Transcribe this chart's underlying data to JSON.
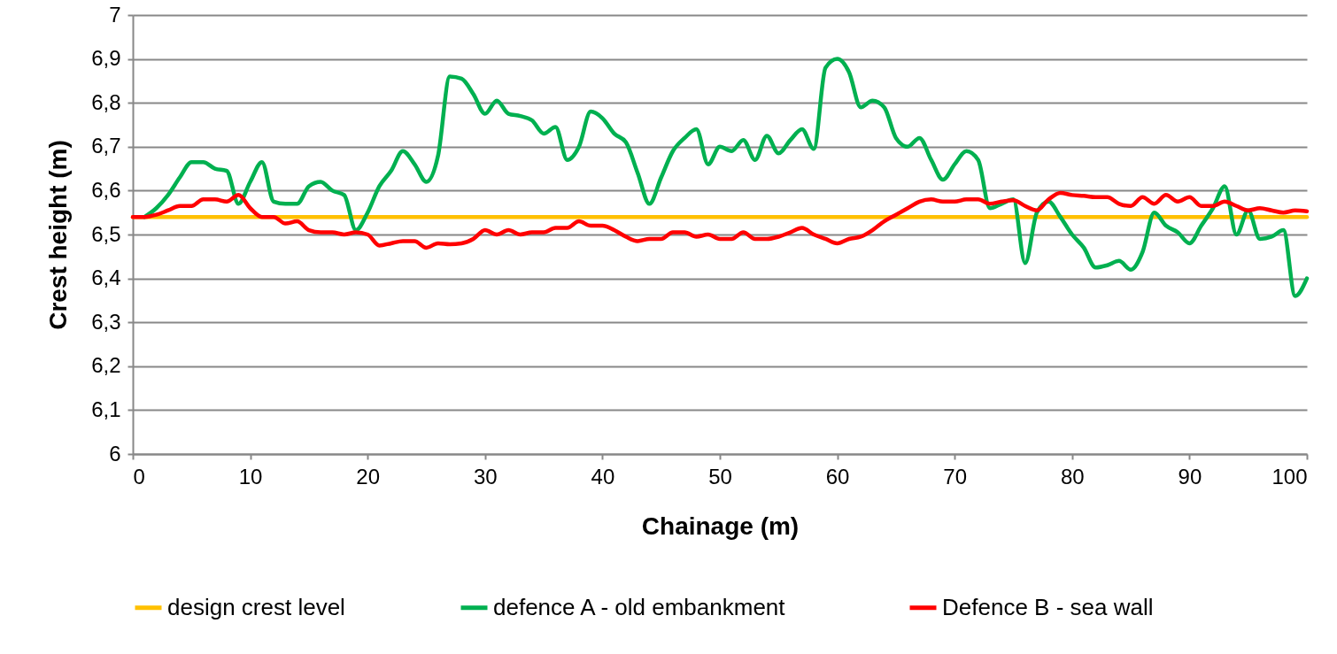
{
  "chart_data": {
    "type": "line",
    "xlabel": "Chainage (m)",
    "ylabel": "Crest height (m)",
    "xlim": [
      0,
      100
    ],
    "xticks": [
      0,
      10,
      20,
      30,
      40,
      50,
      60,
      70,
      80,
      90,
      100
    ],
    "ylim": [
      6,
      7
    ],
    "yticks": [
      6,
      {
        "value": 6.1,
        "label": "6,1"
      },
      {
        "value": 6.2,
        "label": "6,2"
      },
      {
        "value": 6.3,
        "label": "6,3"
      },
      {
        "value": 6.4,
        "label": "6,4"
      },
      {
        "value": 6.5,
        "label": "6,5"
      },
      {
        "value": 6.6,
        "label": "6,6"
      },
      {
        "value": 6.7,
        "label": "6,7"
      },
      {
        "value": 6.8,
        "label": "6,8"
      },
      {
        "value": 6.9,
        "label": "6,9"
      },
      7
    ],
    "grid": "y",
    "legend": "bottom",
    "marker": "none",
    "line_style": "solid",
    "x": [
      0,
      1,
      2,
      3,
      4,
      5,
      6,
      7,
      8,
      9,
      10,
      11,
      12,
      13,
      14,
      15,
      16,
      17,
      18,
      19,
      20,
      21,
      22,
      23,
      24,
      25,
      26,
      27,
      28,
      29,
      30,
      31,
      32,
      33,
      34,
      35,
      36,
      37,
      38,
      39,
      40,
      41,
      42,
      43,
      44,
      45,
      46,
      47,
      48,
      49,
      50,
      51,
      52,
      53,
      54,
      55,
      56,
      57,
      58,
      59,
      60,
      61,
      62,
      63,
      64,
      65,
      66,
      67,
      68,
      69,
      70,
      71,
      72,
      73,
      74,
      75,
      76,
      77,
      78,
      79,
      80,
      81,
      82,
      83,
      84,
      85,
      86,
      87,
      88,
      89,
      90,
      91,
      92,
      93,
      94,
      95,
      96,
      97,
      98,
      99,
      100
    ],
    "series": [
      {
        "name": "design crest level",
        "color": "#ffc000",
        "x": [
          0,
          100
        ],
        "values": [
          6.54,
          6.54
        ]
      },
      {
        "name": "defence A  - old embankment",
        "color": "#00b050",
        "values": [
          null,
          6.54,
          6.56,
          6.59,
          6.63,
          6.665,
          6.665,
          6.65,
          6.645,
          6.57,
          6.62,
          6.665,
          6.575,
          6.57,
          6.57,
          6.61,
          6.62,
          6.6,
          6.59,
          6.51,
          6.55,
          6.61,
          6.645,
          6.69,
          6.66,
          6.62,
          6.68,
          6.86,
          6.855,
          6.82,
          6.775,
          6.805,
          6.775,
          6.77,
          6.76,
          6.73,
          6.745,
          6.67,
          6.7,
          6.78,
          6.765,
          6.73,
          6.71,
          6.64,
          6.57,
          6.63,
          6.69,
          6.72,
          6.74,
          6.66,
          6.7,
          6.69,
          6.715,
          6.67,
          6.725,
          6.685,
          6.715,
          6.74,
          6.695,
          6.88,
          6.9,
          6.87,
          6.79,
          6.805,
          6.79,
          6.72,
          6.7,
          6.72,
          6.67,
          6.625,
          6.66,
          6.69,
          6.67,
          6.56,
          6.57,
          6.58,
          6.435,
          6.55,
          6.575,
          6.54,
          6.5,
          6.47,
          6.425,
          6.43,
          6.44,
          6.42,
          6.46,
          6.55,
          6.52,
          6.505,
          6.48,
          6.52,
          6.56,
          6.61,
          6.5,
          6.555,
          6.49,
          6.495,
          6.51,
          6.36,
          6.4
        ]
      },
      {
        "name": "Defence B - sea wall",
        "color": "#ff0000",
        "values": [
          6.54,
          6.54,
          6.545,
          6.555,
          6.565,
          6.565,
          6.58,
          6.58,
          6.575,
          6.59,
          6.56,
          6.54,
          6.54,
          6.525,
          6.53,
          6.51,
          6.505,
          6.505,
          6.5,
          6.505,
          6.5,
          6.475,
          6.48,
          6.485,
          6.485,
          6.47,
          6.48,
          6.478,
          6.48,
          6.49,
          6.51,
          6.5,
          6.51,
          6.5,
          6.505,
          6.505,
          6.515,
          6.515,
          6.53,
          6.52,
          6.52,
          6.51,
          6.495,
          6.485,
          6.49,
          6.49,
          6.505,
          6.505,
          6.495,
          6.5,
          6.49,
          6.49,
          6.505,
          6.49,
          6.49,
          6.495,
          6.505,
          6.515,
          6.5,
          6.49,
          6.48,
          6.49,
          6.495,
          6.51,
          6.53,
          6.545,
          6.56,
          6.575,
          6.58,
          6.575,
          6.575,
          6.58,
          6.58,
          6.57,
          6.575,
          6.578,
          6.565,
          6.555,
          6.58,
          6.595,
          6.59,
          6.588,
          6.585,
          6.585,
          6.57,
          6.565,
          6.585,
          6.57,
          6.59,
          6.575,
          6.585,
          6.565,
          6.565,
          6.575,
          6.565,
          6.555,
          6.56,
          6.555,
          6.55,
          6.555,
          6.553
        ]
      }
    ]
  }
}
